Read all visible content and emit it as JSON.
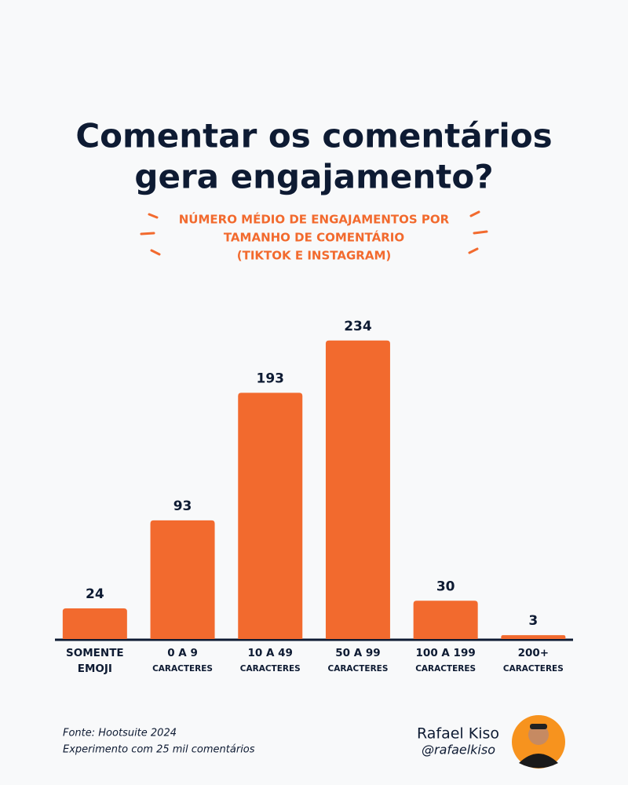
{
  "chart_data": {
    "type": "bar",
    "title": [
      "Comentar os comentários",
      "gera engajamento?"
    ],
    "subtitle": [
      "NÚMERO MÉDIO DE ENGAJAMENTOS POR",
      "TAMANHO DE COMENTÁRIO",
      "(TIKTOK E INSTAGRAM)"
    ],
    "categories": [
      [
        "SOMENTE",
        "EMOJI"
      ],
      [
        "0 A 9",
        "CARACTERES"
      ],
      [
        "10 A 49",
        "CARACTERES"
      ],
      [
        "50 A 99",
        "CARACTERES"
      ],
      [
        "100 A 199",
        "CARACTERES"
      ],
      [
        "200+",
        "CARACTERES"
      ]
    ],
    "values": [
      24,
      93,
      193,
      234,
      30,
      3
    ],
    "color": "#f26a2e",
    "source": [
      "Fonte: Hootsuite 2024",
      "Experimento com 25 mil comentários"
    ],
    "author": {
      "name": "Rafael Kiso",
      "handle": "@rafaelkiso"
    }
  }
}
